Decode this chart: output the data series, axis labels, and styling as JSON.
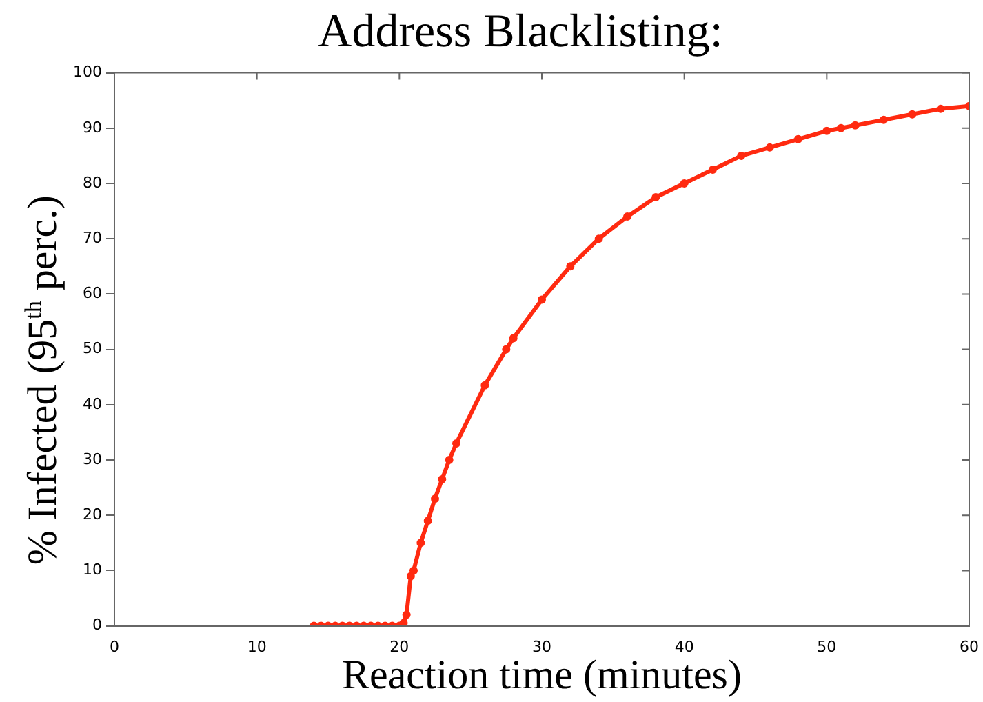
{
  "chart_data": {
    "type": "line",
    "title": "Address Blacklisting:",
    "xlabel": "Reaction time (minutes)",
    "ylabel": "% Infected (95$^{th}$ perc.)",
    "x": [
      14,
      14.5,
      15,
      15.5,
      16,
      16.5,
      17,
      17.5,
      18,
      18.5,
      19,
      19.5,
      20,
      20.3,
      20.5,
      20.8,
      21,
      21.5,
      22,
      22.5,
      23,
      23.5,
      24,
      26,
      27.5,
      28,
      30,
      32,
      34,
      36,
      38,
      40,
      42,
      44,
      46,
      48,
      50,
      51,
      52,
      54,
      56,
      58,
      60
    ],
    "series": [
      {
        "color": "#ff2a10",
        "values": [
          0,
          0,
          0,
          0,
          0,
          0,
          0,
          0,
          0,
          0,
          0,
          0,
          0,
          0.5,
          2,
          9,
          10,
          15,
          19,
          23,
          26.5,
          30,
          33,
          43.5,
          50,
          52,
          59,
          65,
          70,
          74,
          77.5,
          80,
          82.5,
          85,
          86.5,
          88,
          89.5,
          90,
          90.5,
          91.5,
          92.5,
          93.5,
          94
        ]
      }
    ],
    "xlim": [
      0,
      60
    ],
    "xticks": [
      0,
      10,
      20,
      30,
      40,
      50,
      60
    ],
    "ylim": [
      0,
      100
    ],
    "yticks": [
      0,
      10,
      20,
      30,
      40,
      50,
      60,
      70,
      80,
      90,
      100
    ],
    "grid": false,
    "legend": false,
    "marker": "circle",
    "line_style": "solid"
  }
}
